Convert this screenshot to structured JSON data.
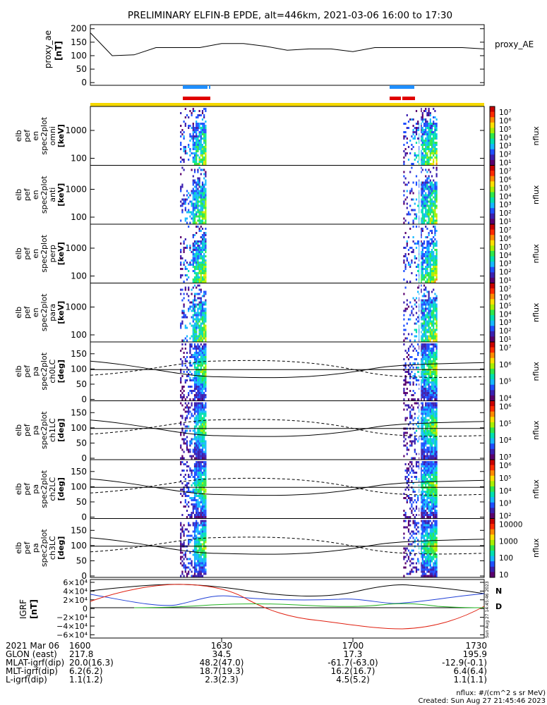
{
  "title": "PRELIMINARY ELFIN-B EPDE, alt=446km, 2021-03-06 16:00 to 17:30",
  "proxy_panel": {
    "ylabel": [
      "proxy_ae",
      "[nT]"
    ],
    "ticks": [
      0,
      50,
      100,
      150,
      200
    ],
    "ylim": [
      -10,
      215
    ],
    "legend": "proxy_AE"
  },
  "spec_panels": [
    {
      "ylabel": [
        "elb",
        "pef",
        "en",
        "spec2plot",
        "omni",
        "[keV]"
      ],
      "ticks": [
        "100",
        "1000"
      ],
      "kind": "energy",
      "cbar_ticks": [
        "10⁷",
        "10⁶",
        "10⁵",
        "10⁴",
        "10³",
        "10²",
        "10¹"
      ],
      "cbar_label": "nflux"
    },
    {
      "ylabel": [
        "elb",
        "pef",
        "en",
        "spec2plot",
        "anti",
        "[keV]"
      ],
      "ticks": [
        "100",
        "1000"
      ],
      "kind": "energy",
      "cbar_ticks": [
        "10⁷",
        "10⁶",
        "10⁵",
        "10⁴",
        "10³",
        "10²",
        "10¹"
      ],
      "cbar_label": "nflux"
    },
    {
      "ylabel": [
        "elb",
        "pef",
        "en",
        "spec2plot",
        "perp",
        "[keV]"
      ],
      "ticks": [
        "100",
        "1000"
      ],
      "kind": "energy",
      "cbar_ticks": [
        "10⁷",
        "10⁶",
        "10⁵",
        "10⁴",
        "10³",
        "10²",
        "10¹"
      ],
      "cbar_label": "nflux"
    },
    {
      "ylabel": [
        "elb",
        "pef",
        "en",
        "spec2plot",
        "para",
        "[keV]"
      ],
      "ticks": [
        "100",
        "1000"
      ],
      "kind": "energy",
      "cbar_ticks": [
        "10⁷",
        "10⁶",
        "10⁵",
        "10⁴",
        "10³",
        "10²",
        "10¹"
      ],
      "cbar_label": "nflux"
    },
    {
      "ylabel": [
        "elb",
        "pef",
        "pa",
        "spec2plot",
        "ch0LC",
        "[deg]"
      ],
      "ticks": [
        "0",
        "50",
        "100",
        "150"
      ],
      "kind": "pa",
      "cbar_ticks": [
        "10⁷",
        "10⁶",
        "10⁵",
        "10⁴"
      ],
      "cbar_label": "nflux"
    },
    {
      "ylabel": [
        "elb",
        "pef",
        "pa",
        "spec2plot",
        "ch1LC",
        "[deg]"
      ],
      "ticks": [
        "0",
        "50",
        "100",
        "150"
      ],
      "kind": "pa",
      "cbar_ticks": [
        "10⁶",
        "10⁵",
        "10⁴",
        "10³"
      ],
      "cbar_label": "nflux"
    },
    {
      "ylabel": [
        "elb",
        "pef",
        "pa",
        "spec2plot",
        "ch2LC",
        "[deg]"
      ],
      "ticks": [
        "0",
        "50",
        "100",
        "150"
      ],
      "kind": "pa",
      "cbar_ticks": [
        "10⁶",
        "10⁵",
        "10⁴",
        "10³",
        "10²"
      ],
      "cbar_label": "nflux"
    },
    {
      "ylabel": [
        "elb",
        "pef",
        "pa",
        "spec2plot",
        "ch3LC",
        "[deg]"
      ],
      "ticks": [
        "0",
        "50",
        "100",
        "150"
      ],
      "kind": "pa",
      "cbar_ticks": [
        "10000",
        "1000",
        "100",
        "10"
      ],
      "cbar_label": "nflux"
    }
  ],
  "igrf_panel": {
    "ylabel": [
      "IGRF",
      "[nT]"
    ],
    "ticks": [
      "6×10⁴",
      "4×10⁴",
      "2×10⁴",
      "0",
      "−2×10⁴",
      "−4×10⁴",
      "−6×10⁴"
    ],
    "legend": [
      {
        "label": "N",
        "color": "#1f3fd6"
      },
      {
        "label": "D",
        "color": "#e02010"
      }
    ],
    "stamp": "Sun Aug 27 14:45:46 2023"
  },
  "xaxis": {
    "rows": [
      {
        "label": "2021 Mar 06",
        "values": [
          "1600",
          "1630",
          "1700",
          "1730"
        ]
      },
      {
        "label": "GLON (east)",
        "values": [
          "217.8",
          "34.5",
          "17.3",
          "195.9"
        ]
      },
      {
        "label": "MLAT-igrf(dip)",
        "values": [
          "20.0(16.3)",
          "48.2(47.0)",
          "-61.7(-63.0)",
          "-12.9(-0.1)"
        ]
      },
      {
        "label": "MLT-igrf(dip)",
        "values": [
          "6.2(6.2)",
          "18.7(19.3)",
          "16.2(16.7)",
          "6.4(6.4)"
        ]
      },
      {
        "label": "L-igrf(dip)",
        "values": [
          "1.1(1.2)",
          "2.3(2.3)",
          "4.5(5.2)",
          "1.1(1.1)"
        ]
      }
    ]
  },
  "footer": {
    "units": "nflux: #/(cm^2 s sr MeV)",
    "created": "Created: Sun Aug 27 21:45:46 2023"
  },
  "colors": {
    "blue_bar": "#1f8fff",
    "red_bar": "#e00000",
    "yellow_bar": "#f5d800",
    "igrf_N": "#1f3fd6",
    "igrf_D": "#e02010",
    "igrf_green": "#22b322"
  },
  "chart_data": {
    "type": "line",
    "x_range": [
      "16:00",
      "17:30"
    ],
    "x_ticks": [
      "1600",
      "1630",
      "1700",
      "1730"
    ],
    "proxy_ae": {
      "x_min": [
        0,
        5,
        10,
        15,
        20,
        25,
        30,
        35,
        40,
        45,
        50,
        55,
        60,
        65,
        70,
        75,
        80,
        85,
        90
      ],
      "values": [
        185,
        100,
        103,
        130,
        130,
        130,
        145,
        145,
        135,
        120,
        125,
        125,
        115,
        130,
        130,
        130,
        130,
        130,
        125
      ]
    },
    "science_zones_min": [
      [
        20.5,
        26.5
      ],
      [
        71.5,
        79
      ]
    ]
  }
}
